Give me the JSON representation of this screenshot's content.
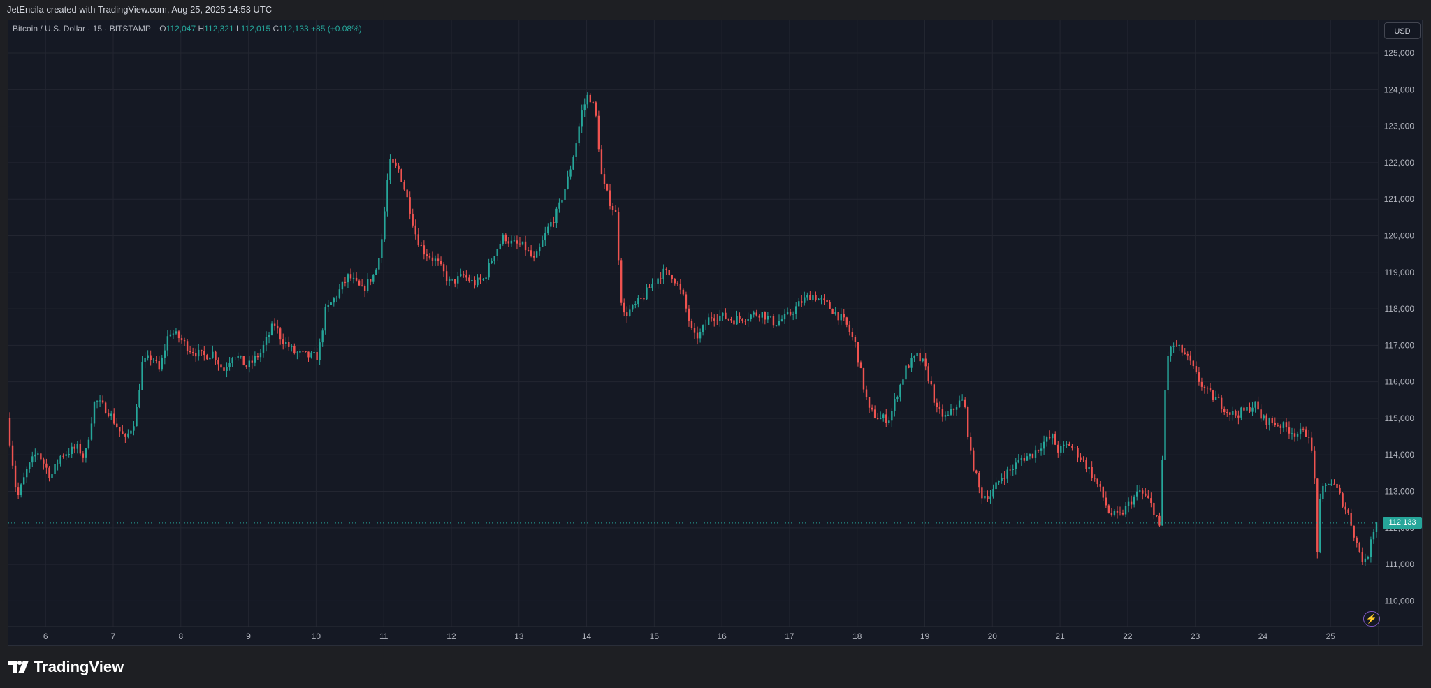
{
  "header": {
    "attribution": "JetEncila created with TradingView.com, Aug 25, 2025 14:53 UTC"
  },
  "legend": {
    "symbol": "Bitcoin / U.S. Dollar · 15 · BITSTAMP",
    "o_label": "O",
    "o_value": "112,047",
    "h_label": "H",
    "h_value": "112,321",
    "l_label": "L",
    "l_value": "112,015",
    "c_label": "C",
    "c_value": "112,133",
    "change": "+85 (+0.08%)"
  },
  "currency_button": "USD",
  "last_price_label": "112,133",
  "brand": {
    "name": "TradingView"
  },
  "colors": {
    "up": "#26a69a",
    "down": "#ef5350",
    "background": "#151924",
    "grid": "#232631",
    "axis_text": "#b2b5be"
  },
  "chart_data": {
    "type": "candlestick",
    "symbol": "BTCUSD",
    "interval": "15",
    "exchange": "BITSTAMP",
    "y_ticks": [
      110000,
      111000,
      112000,
      113000,
      114000,
      115000,
      116000,
      117000,
      118000,
      119000,
      120000,
      121000,
      122000,
      123000,
      124000,
      125000
    ],
    "y_tick_labels": [
      "110,000",
      "111,000",
      "112,000",
      "113,000",
      "114,000",
      "115,000",
      "116,000",
      "117,000",
      "118,000",
      "119,000",
      "120,000",
      "121,000",
      "122,000",
      "123,000",
      "124,000",
      "125,000"
    ],
    "ylim": [
      109300,
      125900
    ],
    "x_tick_labels": [
      "6",
      "7",
      "8",
      "9",
      "10",
      "11",
      "12",
      "13",
      "14",
      "15",
      "16",
      "17",
      "18",
      "19",
      "20",
      "21",
      "22",
      "23",
      "24",
      "25"
    ],
    "x_tick_days": [
      6,
      7,
      8,
      9,
      10,
      11,
      12,
      13,
      14,
      15,
      16,
      17,
      18,
      19,
      20,
      21,
      22,
      23,
      24,
      25
    ],
    "xlim_days": [
      5.45,
      25.7
    ],
    "last_price": 112133,
    "price_path": [
      [
        5.45,
        115000
      ],
      [
        5.6,
        112800
      ],
      [
        5.75,
        113600
      ],
      [
        5.9,
        114100
      ],
      [
        6.1,
        113400
      ],
      [
        6.25,
        114000
      ],
      [
        6.5,
        114200
      ],
      [
        6.6,
        113900
      ],
      [
        6.75,
        115500
      ],
      [
        6.95,
        115200
      ],
      [
        7.1,
        114700
      ],
      [
        7.2,
        114400
      ],
      [
        7.35,
        115000
      ],
      [
        7.45,
        116500
      ],
      [
        7.6,
        116700
      ],
      [
        7.7,
        116300
      ],
      [
        7.85,
        117400
      ],
      [
        8.0,
        117200
      ],
      [
        8.15,
        116900
      ],
      [
        8.35,
        116700
      ],
      [
        8.5,
        116800
      ],
      [
        8.65,
        116300
      ],
      [
        8.8,
        116800
      ],
      [
        9.0,
        116400
      ],
      [
        9.2,
        116800
      ],
      [
        9.4,
        117600
      ],
      [
        9.5,
        117200
      ],
      [
        9.7,
        116800
      ],
      [
        9.9,
        116700
      ],
      [
        10.05,
        116700
      ],
      [
        10.15,
        117900
      ],
      [
        10.3,
        118300
      ],
      [
        10.5,
        118900
      ],
      [
        10.7,
        118500
      ],
      [
        10.9,
        119000
      ],
      [
        11.0,
        120000
      ],
      [
        11.1,
        122000
      ],
      [
        11.25,
        121800
      ],
      [
        11.4,
        120800
      ],
      [
        11.5,
        120000
      ],
      [
        11.6,
        119600
      ],
      [
        11.8,
        119300
      ],
      [
        12.0,
        118700
      ],
      [
        12.2,
        118900
      ],
      [
        12.35,
        118700
      ],
      [
        12.5,
        118800
      ],
      [
        12.65,
        119500
      ],
      [
        12.8,
        120000
      ],
      [
        12.9,
        119800
      ],
      [
        13.1,
        119700
      ],
      [
        13.25,
        119300
      ],
      [
        13.45,
        120200
      ],
      [
        13.6,
        120700
      ],
      [
        13.75,
        121600
      ],
      [
        13.85,
        122400
      ],
      [
        13.95,
        123400
      ],
      [
        14.05,
        123900
      ],
      [
        14.15,
        123400
      ],
      [
        14.25,
        121500
      ],
      [
        14.35,
        121000
      ],
      [
        14.45,
        120600
      ],
      [
        14.55,
        117800
      ],
      [
        14.7,
        118000
      ],
      [
        14.85,
        118300
      ],
      [
        15.0,
        118700
      ],
      [
        15.15,
        119000
      ],
      [
        15.3,
        118900
      ],
      [
        15.45,
        118300
      ],
      [
        15.6,
        117200
      ],
      [
        15.7,
        117300
      ],
      [
        15.85,
        117800
      ],
      [
        16.0,
        117800
      ],
      [
        16.2,
        117700
      ],
      [
        16.4,
        117800
      ],
      [
        16.6,
        117900
      ],
      [
        16.8,
        117600
      ],
      [
        17.0,
        117800
      ],
      [
        17.2,
        118200
      ],
      [
        17.35,
        118400
      ],
      [
        17.5,
        118200
      ],
      [
        17.7,
        117900
      ],
      [
        17.85,
        117600
      ],
      [
        18.0,
        117000
      ],
      [
        18.1,
        116000
      ],
      [
        18.2,
        115200
      ],
      [
        18.35,
        115000
      ],
      [
        18.5,
        115000
      ],
      [
        18.6,
        115600
      ],
      [
        18.75,
        116400
      ],
      [
        18.9,
        116700
      ],
      [
        19.0,
        116500
      ],
      [
        19.1,
        116000
      ],
      [
        19.2,
        115200
      ],
      [
        19.35,
        115000
      ],
      [
        19.5,
        115400
      ],
      [
        19.6,
        115500
      ],
      [
        19.7,
        114000
      ],
      [
        19.85,
        112900
      ],
      [
        20.0,
        112900
      ],
      [
        20.15,
        113400
      ],
      [
        20.3,
        113600
      ],
      [
        20.45,
        113900
      ],
      [
        20.6,
        114000
      ],
      [
        20.75,
        114300
      ],
      [
        20.9,
        114500
      ],
      [
        21.0,
        114100
      ],
      [
        21.15,
        114300
      ],
      [
        21.3,
        114000
      ],
      [
        21.45,
        113600
      ],
      [
        21.6,
        113100
      ],
      [
        21.75,
        112400
      ],
      [
        21.9,
        112300
      ],
      [
        22.05,
        112700
      ],
      [
        22.2,
        113000
      ],
      [
        22.35,
        112700
      ],
      [
        22.45,
        112300
      ],
      [
        22.5,
        111900
      ],
      [
        22.55,
        114800
      ],
      [
        22.6,
        116700
      ],
      [
        22.7,
        117000
      ],
      [
        22.85,
        116800
      ],
      [
        22.95,
        116500
      ],
      [
        23.05,
        116100
      ],
      [
        23.2,
        115700
      ],
      [
        23.35,
        115500
      ],
      [
        23.5,
        115200
      ],
      [
        23.6,
        115100
      ],
      [
        23.75,
        115200
      ],
      [
        23.9,
        115400
      ],
      [
        24.0,
        115000
      ],
      [
        24.15,
        114900
      ],
      [
        24.3,
        114800
      ],
      [
        24.5,
        114600
      ],
      [
        24.7,
        114600
      ],
      [
        24.78,
        113500
      ],
      [
        24.82,
        111200
      ],
      [
        24.85,
        112500
      ],
      [
        24.9,
        113000
      ],
      [
        25.0,
        113300
      ],
      [
        25.1,
        113100
      ],
      [
        25.2,
        112700
      ],
      [
        25.3,
        112300
      ],
      [
        25.4,
        111600
      ],
      [
        25.48,
        111200
      ],
      [
        25.55,
        111000
      ],
      [
        25.62,
        111800
      ],
      [
        25.7,
        112133
      ]
    ]
  }
}
